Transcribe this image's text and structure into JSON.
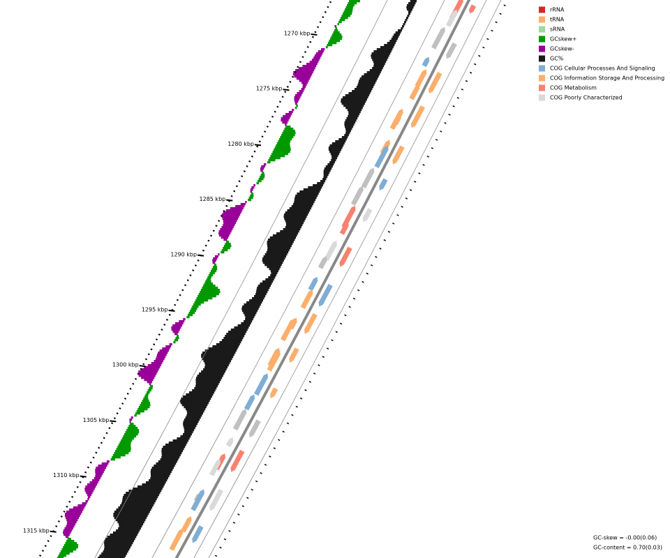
{
  "legend": [
    {
      "label": "rRNA",
      "color": "#d62728"
    },
    {
      "label": "tRNA",
      "color": "#fdae6b"
    },
    {
      "label": "sRNA",
      "color": "#a1d99b"
    },
    {
      "label": "GCskew+",
      "color": "#009900"
    },
    {
      "label": "GCskew-",
      "color": "#990099"
    },
    {
      "label": "GC%",
      "color": "#1a1a1a"
    },
    {
      "label": "COG Cellular Processes And Signaling",
      "color": "#7fadd3"
    },
    {
      "label": "COG Information Storage And Processing",
      "color": "#fdae6b"
    },
    {
      "label": "COG Metabolism",
      "color": "#f98170"
    },
    {
      "label": "COG Poorly Characterized",
      "color": "#d9d9d9"
    }
  ],
  "ticks": [
    "1270 kbp",
    "1275 kbp",
    "1280 kbp",
    "1285 kbp",
    "1290 kbp",
    "1295 kbp",
    "1300 kbp",
    "1305 kbp",
    "1310 kbp",
    "1315 kbp"
  ],
  "stats": {
    "gc_skew": "GC-skew = -0.00(0.06)",
    "gc_content": "GC-content = 0.70(0.03)"
  }
}
